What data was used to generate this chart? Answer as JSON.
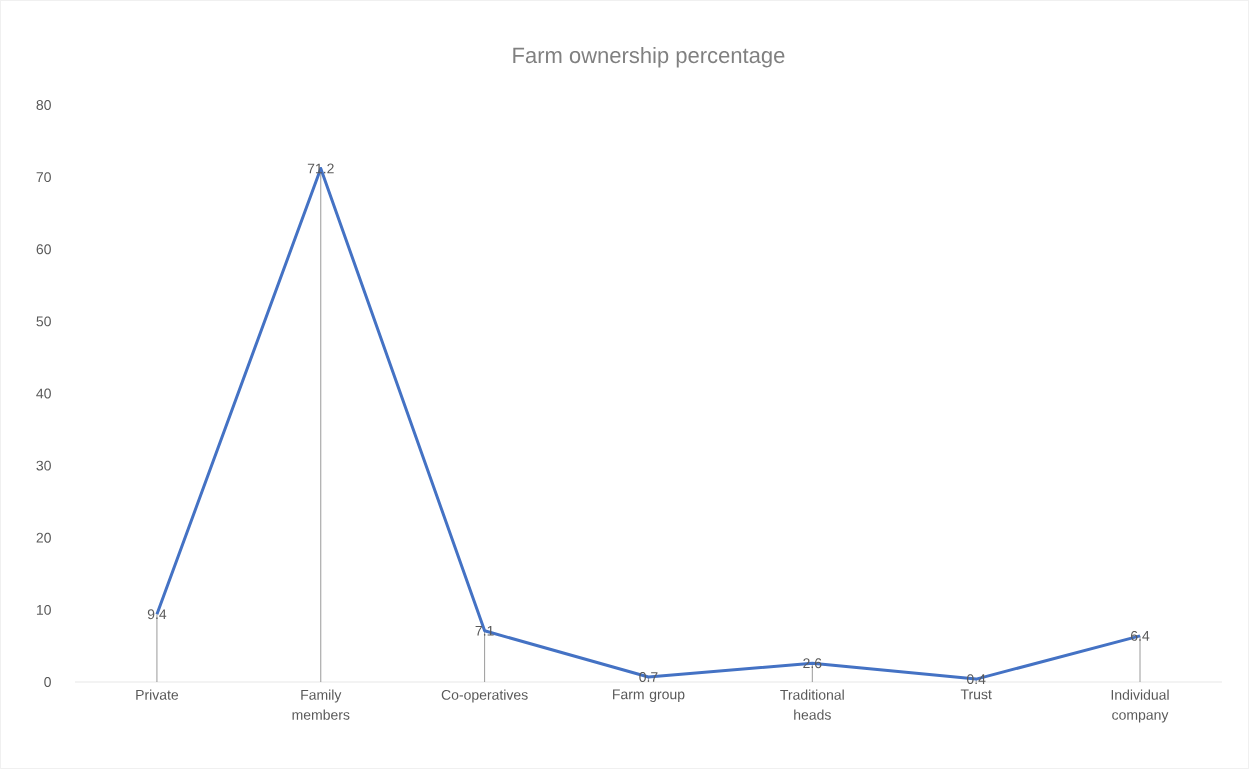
{
  "chart_data": {
    "type": "line",
    "title": "Farm ownership percentage",
    "categories": [
      "Private",
      "Family members",
      "Co-operatives",
      "Farm group",
      "Traditional heads",
      "Trust",
      "Individual company"
    ],
    "values": [
      9.4,
      71.2,
      7.1,
      0.7,
      2.6,
      0.4,
      6.4
    ],
    "color": "#4472c4",
    "ylim": [
      0,
      80
    ],
    "yticks": [
      0,
      10,
      20,
      30,
      40,
      50,
      60,
      70,
      80
    ],
    "data_labels": true
  }
}
